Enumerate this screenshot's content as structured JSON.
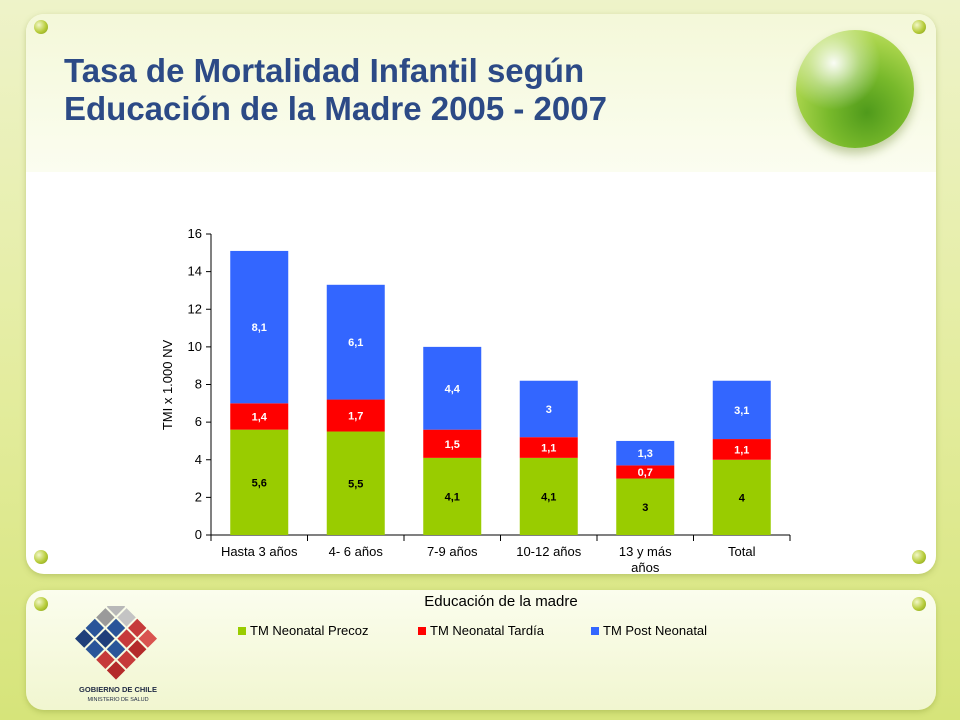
{
  "slide": {
    "title_line1": "Tasa de Mortalidad Infantil según",
    "title_line2": "Educación de la Madre 2005 - 2007"
  },
  "logo": {
    "line1": "GOBIERNO DE CHILE",
    "line2": "MINISTERIO DE SALUD"
  },
  "chart_data": {
    "type": "bar",
    "stacked": true,
    "categories": [
      "Hasta 3 años",
      "4- 6 años",
      "7-9 años",
      "10-12 años",
      "13 y más años",
      "Total"
    ],
    "series": [
      {
        "name": "TM Neonatal Precoz",
        "color": "#99cc00",
        "values": [
          5.6,
          5.5,
          4.1,
          4.1,
          3,
          4
        ],
        "labels": [
          "5,6",
          "5,5",
          "4,1",
          "4,1",
          "3",
          "4"
        ]
      },
      {
        "name": "TM Neonatal Tardía",
        "color": "#ff0000",
        "values": [
          1.4,
          1.7,
          1.5,
          1.1,
          0.7,
          1.1
        ],
        "labels": [
          "1,4",
          "1,7",
          "1,5",
          "1,1",
          "0,7",
          "1,1"
        ]
      },
      {
        "name": "TM Post Neonatal",
        "color": "#3366ff",
        "values": [
          8.1,
          6.1,
          4.4,
          3,
          1.3,
          3.1
        ],
        "labels": [
          "8,1",
          "6,1",
          "4,4",
          "3",
          "1,3",
          "3,1"
        ]
      }
    ],
    "xlabel": "Educación de la madre",
    "ylabel": "TMI x 1.000 NV",
    "ylim": [
      0,
      16
    ],
    "yticks": [
      0,
      2,
      4,
      6,
      8,
      10,
      12,
      14,
      16
    ],
    "grid": false,
    "legend_position": "bottom"
  }
}
